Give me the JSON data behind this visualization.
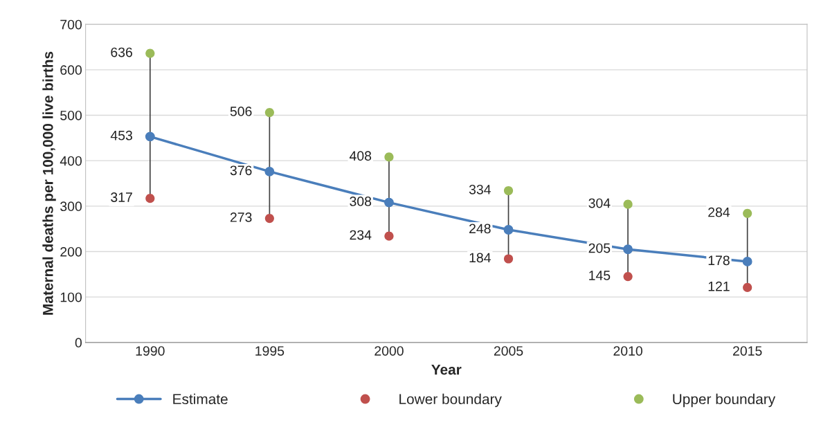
{
  "chart_data": {
    "type": "line",
    "xlabel": "Year",
    "ylabel": "Maternal deaths per 100,000 live births",
    "categories": [
      "1990",
      "1995",
      "2000",
      "2005",
      "2010",
      "2015"
    ],
    "series": [
      {
        "name": "Estimate",
        "color": "#4a7ebb",
        "values": [
          453,
          376,
          308,
          248,
          205,
          178
        ]
      },
      {
        "name": "Lower boundary",
        "type": "scatter",
        "color": "#c0504d",
        "values": [
          317,
          273,
          234,
          184,
          145,
          121
        ]
      },
      {
        "name": "Upper boundary",
        "type": "scatter",
        "color": "#9bbb59",
        "values": [
          636,
          506,
          408,
          334,
          304,
          284
        ]
      }
    ],
    "ylim": [
      0,
      700
    ],
    "yticks": [
      0,
      100,
      200,
      300,
      400,
      500,
      600,
      700
    ],
    "grid": "y",
    "legend": "bottom",
    "marker": "circle",
    "line_style": "solid",
    "data_labels": true
  }
}
